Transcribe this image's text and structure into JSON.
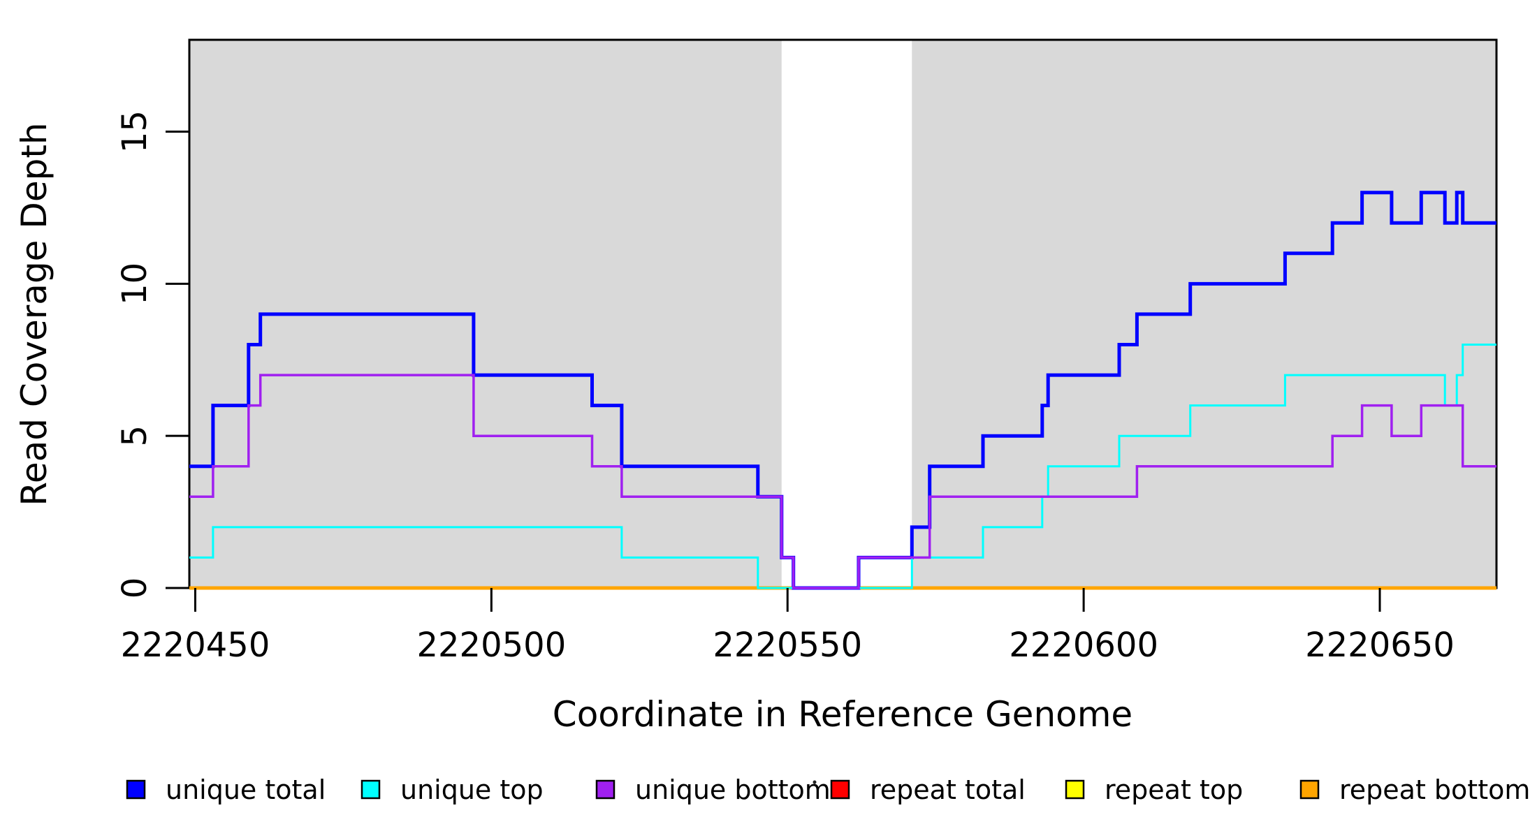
{
  "chart_data": {
    "type": "line",
    "subtype": "step",
    "title": "",
    "xlabel": "Coordinate in Reference Genome",
    "ylabel": "Read Coverage Depth",
    "x_ticks": [
      2220450,
      2220500,
      2220550,
      2220600,
      2220650
    ],
    "y_ticks": [
      0,
      5,
      10,
      15
    ],
    "x_range": [
      2220449,
      2220669.7
    ],
    "y_range": [
      0,
      18.02
    ],
    "grid": false,
    "shade_color": "#D9D9D9",
    "shaded_regions": [
      {
        "from": 2220449,
        "to": 2220549
      },
      {
        "from": 2220571,
        "to": 2220669.7
      }
    ],
    "series": [
      {
        "name": "unique total",
        "color": "#0000FF",
        "width": 5,
        "steps": [
          [
            2220449,
            4
          ],
          [
            2220453,
            6
          ],
          [
            2220459,
            8
          ],
          [
            2220461,
            9
          ],
          [
            2220497,
            7
          ],
          [
            2220517,
            6
          ],
          [
            2220522,
            4
          ],
          [
            2220545,
            3
          ],
          [
            2220549,
            1
          ],
          [
            2220551,
            0
          ],
          [
            2220562,
            1
          ],
          [
            2220571,
            2
          ],
          [
            2220574,
            4
          ],
          [
            2220583,
            5
          ],
          [
            2220593,
            6
          ],
          [
            2220594,
            7
          ],
          [
            2220606,
            8
          ],
          [
            2220609,
            9
          ],
          [
            2220618,
            10
          ],
          [
            2220634,
            11
          ],
          [
            2220642,
            12
          ],
          [
            2220647,
            13
          ],
          [
            2220652,
            12
          ],
          [
            2220657,
            13
          ],
          [
            2220661,
            12
          ],
          [
            2220663,
            13
          ],
          [
            2220664,
            12
          ]
        ]
      },
      {
        "name": "unique top",
        "color": "#00FFFF",
        "width": 3,
        "steps": [
          [
            2220449,
            1
          ],
          [
            2220453,
            2
          ],
          [
            2220522,
            1
          ],
          [
            2220545,
            0
          ],
          [
            2220571,
            1
          ],
          [
            2220583,
            2
          ],
          [
            2220593,
            3
          ],
          [
            2220594,
            4
          ],
          [
            2220606,
            5
          ],
          [
            2220618,
            6
          ],
          [
            2220634,
            7
          ],
          [
            2220661,
            6
          ],
          [
            2220663,
            7
          ],
          [
            2220664,
            8
          ]
        ]
      },
      {
        "name": "unique bottom",
        "color": "#A020F0",
        "width": 3.5,
        "steps": [
          [
            2220449,
            3
          ],
          [
            2220453,
            4
          ],
          [
            2220459,
            6
          ],
          [
            2220461,
            7
          ],
          [
            2220497,
            5
          ],
          [
            2220517,
            4
          ],
          [
            2220522,
            3
          ],
          [
            2220549,
            1
          ],
          [
            2220551,
            0
          ],
          [
            2220562,
            1
          ],
          [
            2220574,
            3
          ],
          [
            2220609,
            4
          ],
          [
            2220642,
            5
          ],
          [
            2220647,
            6
          ],
          [
            2220652,
            5
          ],
          [
            2220657,
            6
          ],
          [
            2220664,
            4
          ]
        ]
      },
      {
        "name": "repeat total",
        "color": "#FF0000",
        "width": 3,
        "steps": [
          [
            2220449,
            0
          ]
        ]
      },
      {
        "name": "repeat top",
        "color": "#FFFF00",
        "width": 3,
        "steps": [
          [
            2220449,
            0
          ]
        ]
      },
      {
        "name": "repeat bottom",
        "color": "#FFA500",
        "width": 5,
        "steps": [
          [
            2220449,
            0
          ]
        ]
      }
    ],
    "draw_order": [
      "repeat total",
      "repeat top",
      "repeat bottom",
      "unique total",
      "unique top",
      "unique bottom"
    ],
    "legend": {
      "position": "bottom",
      "items": [
        {
          "label": "unique total",
          "color": "#0000FF"
        },
        {
          "label": "unique top",
          "color": "#00FFFF"
        },
        {
          "label": "unique bottom",
          "color": "#A020F0"
        },
        {
          "label": "repeat total",
          "color": "#FF0000"
        },
        {
          "label": "repeat top",
          "color": "#FFFF00"
        },
        {
          "label": "repeat bottom",
          "color": "#FFA500"
        }
      ]
    }
  }
}
